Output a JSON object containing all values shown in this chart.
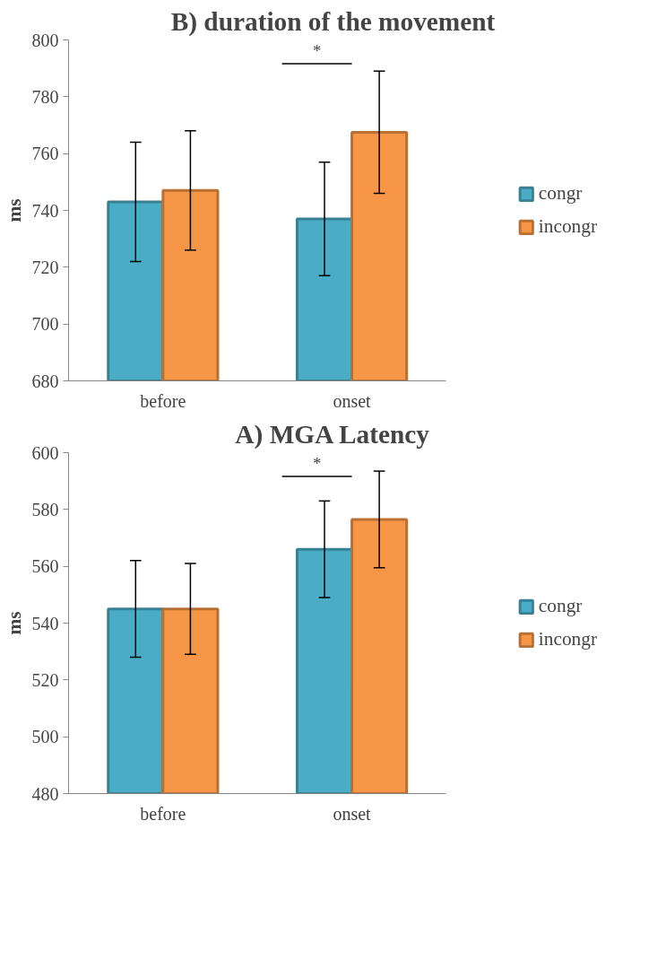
{
  "chart_data": [
    {
      "type": "bar",
      "title": "B) duration of the movement",
      "ylabel": "ms",
      "categories": [
        "before",
        "onset"
      ],
      "ylim": [
        680,
        800
      ],
      "yticks": [
        680,
        700,
        720,
        740,
        760,
        780,
        800
      ],
      "grid": false,
      "legend": "right",
      "series": [
        {
          "name": "congr",
          "color": "#4bacc6",
          "values": [
            743,
            737
          ],
          "errors": [
            21,
            20
          ]
        },
        {
          "name": "incongr",
          "color": "#f79646",
          "values": [
            747,
            767.5
          ],
          "errors": [
            21,
            21.5
          ]
        }
      ],
      "annotations": [
        "*"
      ]
    },
    {
      "type": "bar",
      "title": "A) MGA Latency",
      "ylabel": "ms",
      "categories": [
        "before",
        "onset"
      ],
      "ylim": [
        480,
        600
      ],
      "yticks": [
        480,
        500,
        520,
        540,
        560,
        580,
        600
      ],
      "grid": false,
      "legend": "right",
      "series": [
        {
          "name": "congr",
          "color": "#4bacc6",
          "values": [
            545,
            566
          ],
          "errors": [
            17,
            17
          ]
        },
        {
          "name": "incongr",
          "color": "#f79646",
          "values": [
            545,
            576.5
          ],
          "errors": [
            16,
            17
          ]
        }
      ],
      "annotations": [
        "*"
      ]
    }
  ]
}
